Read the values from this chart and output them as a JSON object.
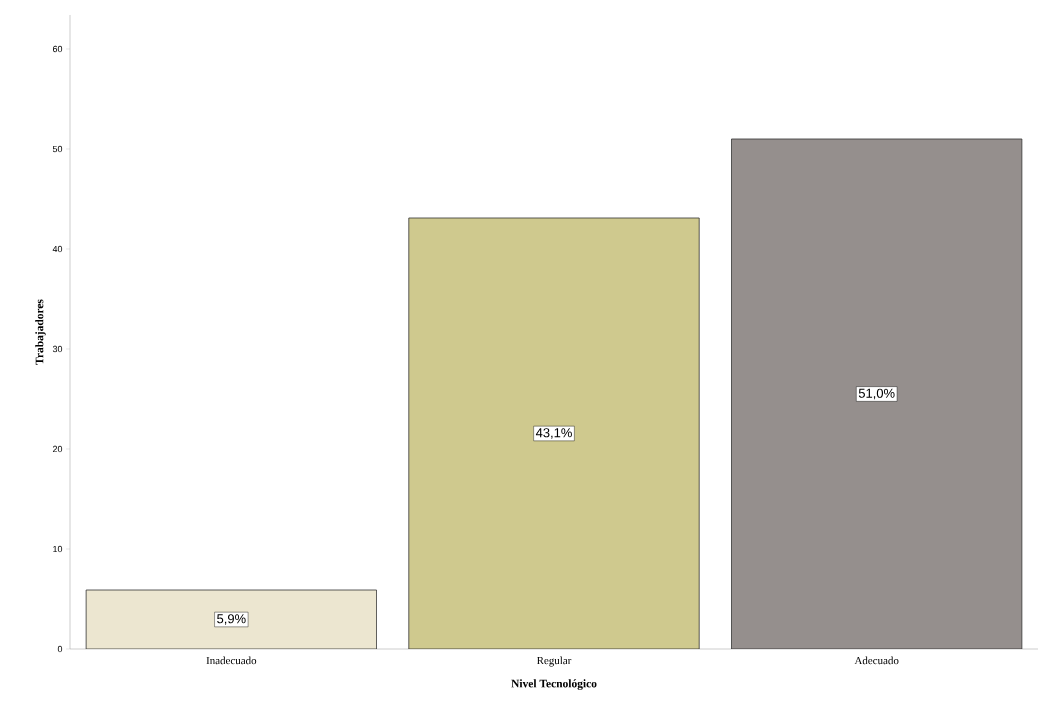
{
  "chart_data": {
    "type": "bar",
    "xlabel": "Nivel Tecnológico",
    "ylabel": "Trabajadores",
    "categories": [
      "Inadecuado",
      "Regular",
      "Adecuado"
    ],
    "values": [
      5.9,
      43.1,
      51.0
    ],
    "colors": [
      "#ece6d0",
      "#cfc98e",
      "#958f8d"
    ],
    "value_labels": [
      "5,9%",
      "43,1%",
      "51,0%"
    ],
    "ylim": [
      0,
      63.4
    ],
    "yticks": [
      0,
      10,
      20,
      30,
      40,
      50,
      60
    ],
    "grid": false
  }
}
